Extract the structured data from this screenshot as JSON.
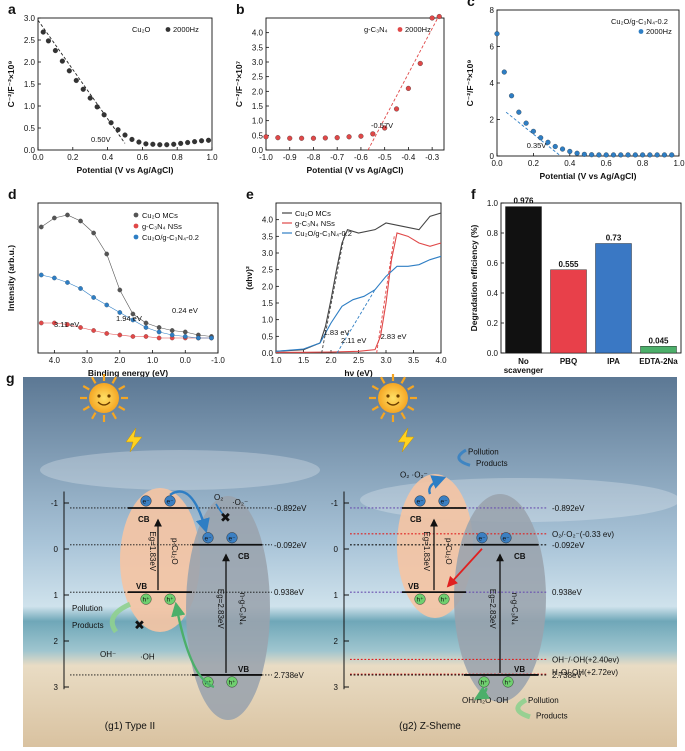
{
  "panels": {
    "a": {
      "letter": "a",
      "xlabel": "Potential (V vs Ag/AgCl)",
      "ylabel": "C⁻²/F⁻²×10⁹",
      "legend": [
        "Cu₂O",
        "2000Hz"
      ],
      "annotation": "0.50V",
      "xlim": [
        0.0,
        1.0
      ],
      "ylim": [
        0.0,
        3.0
      ],
      "xticks": [
        "0.0",
        "0.2",
        "0.4",
        "0.6",
        "0.8",
        "1.0"
      ],
      "yticks": [
        "0.0",
        "0.5",
        "1.0",
        "1.5",
        "2.0",
        "2.5",
        "3.0"
      ],
      "color": "#333333",
      "x": [
        0.03,
        0.06,
        0.1,
        0.14,
        0.18,
        0.22,
        0.26,
        0.3,
        0.34,
        0.38,
        0.42,
        0.46,
        0.5,
        0.54,
        0.58,
        0.62,
        0.66,
        0.7,
        0.74,
        0.78,
        0.82,
        0.86,
        0.9,
        0.94,
        0.98
      ],
      "y": [
        2.68,
        2.48,
        2.26,
        2.02,
        1.8,
        1.58,
        1.38,
        1.18,
        0.98,
        0.8,
        0.62,
        0.46,
        0.34,
        0.24,
        0.18,
        0.14,
        0.13,
        0.12,
        0.12,
        0.13,
        0.15,
        0.17,
        0.19,
        0.21,
        0.22
      ],
      "fit": [
        [
          0.0,
          2.95
        ],
        [
          0.5,
          0.15
        ]
      ]
    },
    "b": {
      "letter": "b",
      "xlabel": "Potential (V vs Ag/AgCl)",
      "ylabel": "C⁻²/F⁻²×10⁷",
      "legend": [
        "g-C₃N₄",
        "2000Hz"
      ],
      "annotation": "-0.57V",
      "xlim": [
        -1.0,
        -0.25
      ],
      "ylim": [
        0.0,
        4.5
      ],
      "xticks": [
        "-1.0",
        "-0.9",
        "-0.8",
        "-0.7",
        "-0.6",
        "-0.5",
        "-0.4",
        "-0.3"
      ],
      "yticks": [
        "0.0",
        "0.5",
        "1.0",
        "1.5",
        "2.0",
        "2.5",
        "3.0",
        "3.5",
        "4.0"
      ],
      "color": "#e04848",
      "x": [
        -1.0,
        -0.95,
        -0.9,
        -0.85,
        -0.8,
        -0.75,
        -0.7,
        -0.65,
        -0.6,
        -0.55,
        -0.5,
        -0.45,
        -0.4,
        -0.35,
        -0.3,
        -0.27
      ],
      "y": [
        0.45,
        0.42,
        0.4,
        0.4,
        0.4,
        0.41,
        0.42,
        0.45,
        0.47,
        0.55,
        0.75,
        1.4,
        2.1,
        2.95,
        4.5,
        4.55
      ],
      "fit": [
        [
          -0.57,
          0.0
        ],
        [
          -0.27,
          4.6
        ]
      ]
    },
    "c": {
      "letter": "c",
      "xlabel": "Potential (V vs Ag/AgCl)",
      "ylabel": "C⁻²/F⁻²×10⁹",
      "legend": [
        "Cu₂O/g-C₃N₄-0.2",
        "2000Hz"
      ],
      "annotation": "0.35V",
      "xlim": [
        0.0,
        1.0
      ],
      "ylim": [
        0.0,
        8.0
      ],
      "xticks": [
        "0.0",
        "0.2",
        "0.4",
        "0.6",
        "0.8",
        "1.0"
      ],
      "yticks": [
        "0",
        "2",
        "4",
        "6",
        "8"
      ],
      "color": "#2e7ec4",
      "x": [
        0.0,
        0.04,
        0.08,
        0.12,
        0.16,
        0.2,
        0.24,
        0.28,
        0.32,
        0.36,
        0.4,
        0.44,
        0.48,
        0.52,
        0.56,
        0.6,
        0.64,
        0.68,
        0.72,
        0.76,
        0.8,
        0.84,
        0.88,
        0.92,
        0.96
      ],
      "y": [
        6.7,
        4.6,
        3.3,
        2.4,
        1.8,
        1.35,
        1.0,
        0.75,
        0.52,
        0.38,
        0.25,
        0.15,
        0.09,
        0.07,
        0.06,
        0.06,
        0.06,
        0.06,
        0.06,
        0.06,
        0.06,
        0.06,
        0.06,
        0.06,
        0.06
      ],
      "fit": [
        [
          0.05,
          2.4
        ],
        [
          0.35,
          0.0
        ]
      ]
    },
    "d": {
      "letter": "d",
      "xlabel": "Binding energy (eV)",
      "ylabel": "Intensity (arb.u.)",
      "legend": [
        "Cu₂O MCs",
        "g-C₃N₄ NSs",
        "Cu₂O/g-C₃N₄-0.2"
      ],
      "annotations": [
        "0.24 eV",
        "3.11 eV",
        "1.94 eV"
      ],
      "xlim": [
        4.5,
        -1.0
      ],
      "xticks": [
        "4.0",
        "3.0",
        "2.0",
        "1.0",
        "0.0",
        "-1.0"
      ],
      "series": [
        {
          "color": "#555555",
          "x": [
            4.4,
            4.0,
            3.6,
            3.2,
            2.8,
            2.4,
            2.0,
            1.6,
            1.2,
            0.8,
            0.4,
            0.0,
            -0.4,
            -0.8
          ],
          "y": [
            0.84,
            0.9,
            0.92,
            0.88,
            0.8,
            0.66,
            0.42,
            0.26,
            0.2,
            0.17,
            0.15,
            0.14,
            0.12,
            0.11
          ]
        },
        {
          "color": "#e04848",
          "x": [
            4.4,
            4.0,
            3.6,
            3.2,
            2.8,
            2.4,
            2.0,
            1.6,
            1.2,
            0.8,
            0.4,
            0.0,
            -0.4,
            -0.8
          ],
          "y": [
            0.2,
            0.2,
            0.19,
            0.17,
            0.15,
            0.13,
            0.12,
            0.11,
            0.11,
            0.1,
            0.1,
            0.1,
            0.1,
            0.1
          ]
        },
        {
          "color": "#2e7ec4",
          "x": [
            4.4,
            4.0,
            3.6,
            3.2,
            2.8,
            2.4,
            2.0,
            1.6,
            1.2,
            0.8,
            0.4,
            0.0,
            -0.4,
            -0.8
          ],
          "y": [
            0.52,
            0.5,
            0.47,
            0.43,
            0.37,
            0.32,
            0.27,
            0.22,
            0.17,
            0.14,
            0.12,
            0.11,
            0.1,
            0.1
          ]
        }
      ]
    },
    "e": {
      "letter": "e",
      "xlabel": "hν (eV)",
      "ylabel": "(αhν)²",
      "legend": [
        "Cu₂O MCs",
        "g-C₃N₄ NSs",
        "Cu₂O/g-C₃N₄-0.2"
      ],
      "annotations": [
        "1.83 eV",
        "2.11 eV",
        "2.83 eV"
      ],
      "xlim": [
        1.0,
        4.0
      ],
      "ylim": [
        0.0,
        4.5
      ],
      "xticks": [
        "1.0",
        "1.5",
        "2.0",
        "2.5",
        "3.0",
        "3.5",
        "4.0"
      ],
      "yticks": [
        "0.0",
        "0.5",
        "1.0",
        "1.5",
        "2.0",
        "2.5",
        "3.0",
        "3.5",
        "4.0"
      ],
      "series": [
        {
          "color": "#444444",
          "x": [
            1.0,
            1.5,
            1.8,
            1.9,
            2.0,
            2.1,
            2.2,
            2.3,
            2.5,
            2.8,
            3.0,
            3.3,
            3.6,
            3.8,
            4.0
          ],
          "y": [
            0.05,
            0.1,
            0.3,
            0.8,
            1.6,
            2.5,
            3.3,
            3.7,
            3.6,
            3.7,
            3.9,
            3.8,
            3.7,
            4.1,
            4.2
          ]
        },
        {
          "color": "#e04848",
          "x": [
            1.0,
            1.5,
            2.0,
            2.5,
            2.8,
            2.9,
            3.0,
            3.1,
            3.2,
            3.4,
            3.6,
            3.8,
            4.0
          ],
          "y": [
            0.02,
            0.02,
            0.03,
            0.05,
            0.1,
            0.5,
            1.5,
            2.8,
            3.6,
            3.5,
            3.3,
            3.2,
            3.3
          ]
        },
        {
          "color": "#2e7ec4",
          "x": [
            1.0,
            1.5,
            1.8,
            2.0,
            2.2,
            2.4,
            2.6,
            2.8,
            3.0,
            3.2,
            3.4,
            3.6,
            3.8,
            4.0
          ],
          "y": [
            0.05,
            0.12,
            0.3,
            0.9,
            1.4,
            1.6,
            1.7,
            1.9,
            2.3,
            2.6,
            2.6,
            2.65,
            2.8,
            2.9
          ]
        }
      ],
      "fits": [
        {
          "color": "#444444",
          "x": [
            1.83,
            2.25
          ],
          "y": [
            0.0,
            3.6
          ]
        },
        {
          "color": "#2e7ec4",
          "x": [
            2.11,
            2.8
          ],
          "y": [
            0.0,
            1.9
          ]
        },
        {
          "color": "#e04848",
          "x": [
            2.83,
            3.15
          ],
          "y": [
            0.0,
            3.5
          ]
        }
      ]
    },
    "f": {
      "letter": "f",
      "ylabel": "Degradation efficiency (%)",
      "ylim": [
        0.0,
        1.0
      ],
      "yticks": [
        "0.0",
        "0.2",
        "0.4",
        "0.6",
        "0.8",
        "1.0"
      ],
      "categories": [
        "No scavenger",
        "PBQ",
        "IPA",
        "EDTA-2Na"
      ],
      "category_lines": [
        [
          "No",
          "scavenger"
        ],
        [
          "PBQ"
        ],
        [
          "IPA"
        ],
        [
          "EDTA-2Na"
        ]
      ],
      "values": [
        0.976,
        0.555,
        0.73,
        0.045
      ],
      "value_labels": [
        "0.976",
        "0.555",
        "0.73",
        "0.045"
      ],
      "colors": [
        "#111111",
        "#e8404a",
        "#3a78c4",
        "#4caf6a"
      ]
    }
  },
  "chart_data": [
    {
      "type": "scatter",
      "panel": "a",
      "xlabel": "Potential (V vs Ag/AgCl)",
      "series_label": "Cu₂O 2000Hz",
      "intercept": "0.50V"
    },
    {
      "type": "scatter",
      "panel": "b",
      "xlabel": "Potential (V vs Ag/AgCl)",
      "series_label": "g-C₃N₄ 2000Hz",
      "intercept": "-0.57V"
    },
    {
      "type": "scatter",
      "panel": "c",
      "xlabel": "Potential (V vs Ag/AgCl)",
      "series_label": "Cu₂O/g-C₃N₄-0.2 2000Hz",
      "intercept": "0.35V"
    },
    {
      "type": "scatter",
      "panel": "d",
      "xlabel": "Binding energy (eV)",
      "ylabel": "Intensity (arb.u.)"
    },
    {
      "type": "line",
      "panel": "e",
      "xlabel": "hν (eV)",
      "ylabel": "(αhν)²"
    },
    {
      "type": "bar",
      "panel": "f",
      "ylabel": "Degradation efficiency (%)",
      "categories": [
        "No scavenger",
        "PBQ",
        "IPA",
        "EDTA-2Na"
      ],
      "values": [
        0.976,
        0.555,
        0.73,
        0.045
      ],
      "ylim": [
        0.0,
        1.0
      ]
    }
  ],
  "g": {
    "letter": "g",
    "g1_caption": "(g1) Type II",
    "g2_caption": "(g2) Z-Sheme",
    "axis_ticks": [
      "-1",
      "0",
      "1",
      "2",
      "3"
    ],
    "g1": {
      "levels": [
        "-0.892eV",
        "-0.092eV",
        "0.938eV",
        "2.738eV"
      ],
      "cb": "CB",
      "vb": "VB",
      "cu2o_label": "p-Cu₂O",
      "cu2o_gap": "Eg=1.83eV",
      "gcn_label": "n-g-C₃N₄",
      "gcn_gap": "Eg=2.83eV",
      "e": "e⁻",
      "h": "h⁺",
      "o2": "O₂",
      "o2r": "·O₂⁻",
      "pollution": "Pollution",
      "products": "Products",
      "oh_minus": "OH⁻",
      "oh_rad": "·OH"
    },
    "g2": {
      "levels": [
        "-0.892eV",
        "O₂/·O₂⁻(-0.33 ev)",
        "-0.092eV",
        "0.938eV",
        "OH⁻/·OH(+2.40ev)",
        "H₂O/·OH(+2.72ev)",
        "2.738eV"
      ],
      "cb": "CB",
      "vb": "VB",
      "cu2o_label": "p-Cu₂O",
      "cu2o_gap": "Eg=1.83eV",
      "gcn_label": "n-g-C₃N₄",
      "gcn_gap": "Eg=2.83eV",
      "e": "e⁻",
      "h": "h⁺",
      "o2pair": "O₂  ·O₂⁻",
      "pollution_top": "Pollution",
      "products_top": "Products",
      "oh_pair": "OH/H₂O  ·OH",
      "pollution_bottom": "Pollution",
      "products_bottom": "Products"
    }
  }
}
